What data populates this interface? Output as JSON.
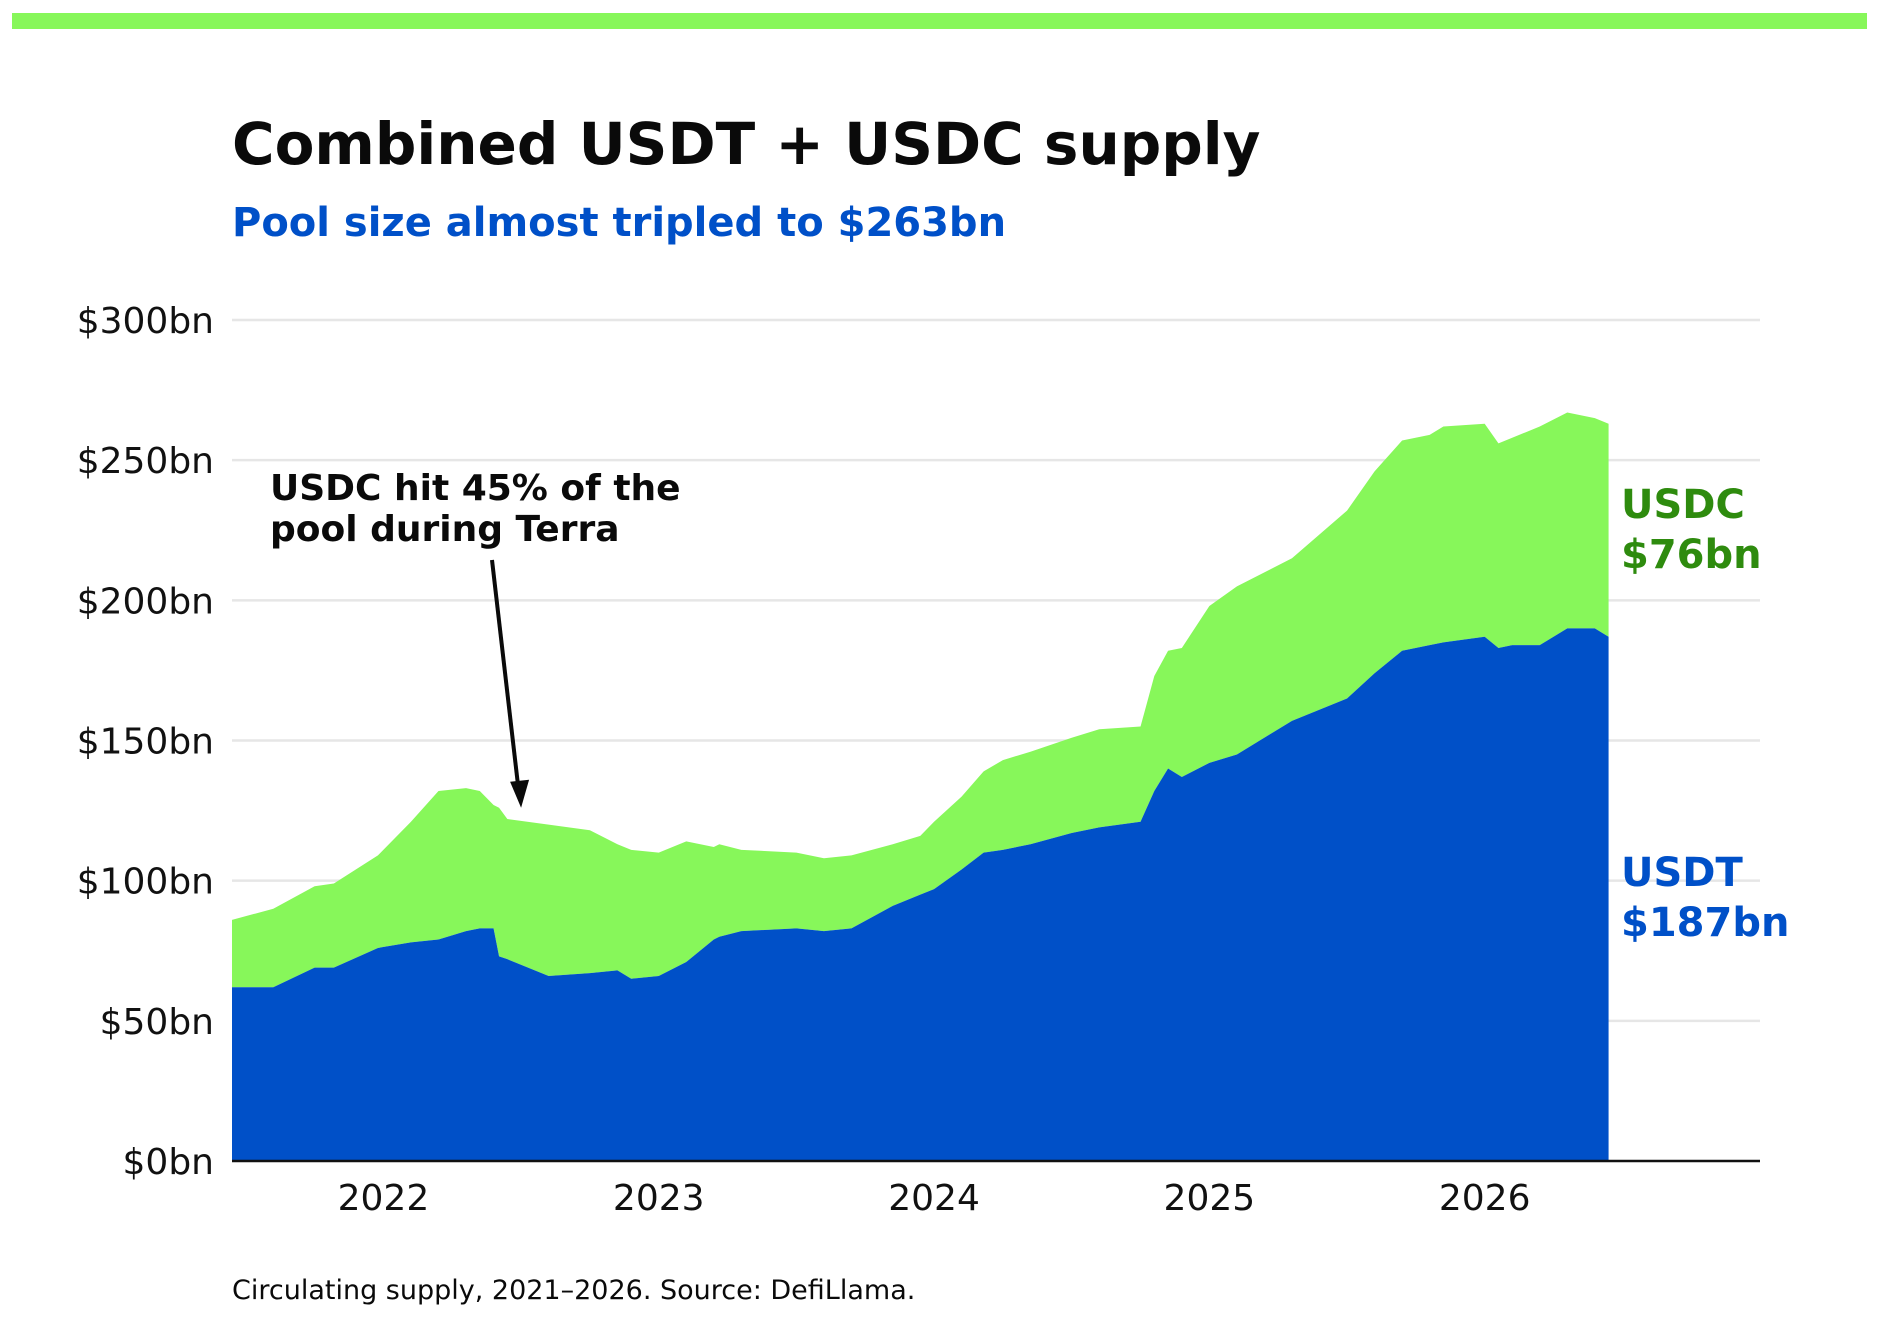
{
  "colors": {
    "accent": "#87f75a",
    "usdt": "#0050c8",
    "usdc": "#87f75a",
    "usdc_label": "#2e8b0e",
    "subtitle": "#0050c8",
    "grid": "#e6e6e6",
    "axis": "#111111"
  },
  "title": "Combined USDT + USDC supply",
  "subtitle": "Pool size almost tripled to $263bn",
  "footer": "Circulating supply, 2021–2026. Source: DefiLlama.",
  "chart_data": {
    "type": "area",
    "stacked": true,
    "title": "Combined USDT + USDC supply",
    "subtitle": "Pool size almost tripled to $263bn",
    "ylim": [
      0,
      300
    ],
    "xlim": [
      2021.45,
      2027.0
    ],
    "y_ticks": [
      0,
      50,
      100,
      150,
      200,
      250,
      300
    ],
    "y_tick_labels": [
      "$0bn",
      "$50bn",
      "$100bn",
      "$150bn",
      "$200bn",
      "$250bn",
      "$300bn"
    ],
    "x_ticks": [
      2022,
      2023,
      2024,
      2025,
      2026
    ],
    "x_tick_labels": [
      "2022",
      "2023",
      "2024",
      "2025",
      "2026"
    ],
    "grid": "horizontal",
    "x": [
      2021.45,
      2021.6,
      2021.75,
      2021.82,
      2021.98,
      2022.1,
      2022.2,
      2022.3,
      2022.35,
      2022.4,
      2022.42,
      2022.45,
      2022.6,
      2022.75,
      2022.85,
      2022.9,
      2023.0,
      2023.1,
      2023.2,
      2023.22,
      2023.3,
      2023.5,
      2023.6,
      2023.7,
      2023.85,
      2023.95,
      2024.0,
      2024.1,
      2024.18,
      2024.25,
      2024.35,
      2024.5,
      2024.6,
      2024.75,
      2024.8,
      2024.85,
      2024.9,
      2025.0,
      2025.1,
      2025.3,
      2025.5,
      2025.6,
      2025.7,
      2025.8,
      2025.85,
      2026.0,
      2026.05,
      2026.1,
      2026.2,
      2026.3,
      2026.4,
      2026.45
    ],
    "series": [
      {
        "name": "USDT",
        "label": "USDT",
        "value_label": "$187bn",
        "values": [
          62,
          62,
          69,
          69,
          76,
          78,
          79,
          82,
          83,
          83,
          73,
          72,
          66,
          67,
          68,
          65,
          66,
          71,
          79,
          80,
          82,
          83,
          82,
          83,
          91,
          95,
          97,
          104,
          110,
          111,
          113,
          117,
          119,
          121,
          132,
          140,
          137,
          142,
          145,
          157,
          165,
          174,
          182,
          184,
          185,
          187,
          183,
          184,
          184,
          190,
          190,
          187
        ]
      },
      {
        "name": "USDC",
        "label": "USDC",
        "value_label": "$76bn",
        "values": [
          24,
          28,
          29,
          30,
          33,
          43,
          53,
          51,
          49,
          44,
          53,
          50,
          54,
          51,
          45,
          46,
          44,
          43,
          33,
          33,
          29,
          27,
          26,
          26,
          22,
          21,
          24,
          26,
          29,
          32,
          33,
          34,
          35,
          34,
          41,
          42,
          46,
          56,
          60,
          58,
          67,
          72,
          75,
          75,
          77,
          76,
          73,
          74,
          78,
          77,
          75,
          76
        ]
      }
    ],
    "annotations": [
      {
        "text": [
          "USDC hit 45% of the",
          "pool during Terra"
        ],
        "x": 2022.5,
        "y": 126
      }
    ]
  }
}
